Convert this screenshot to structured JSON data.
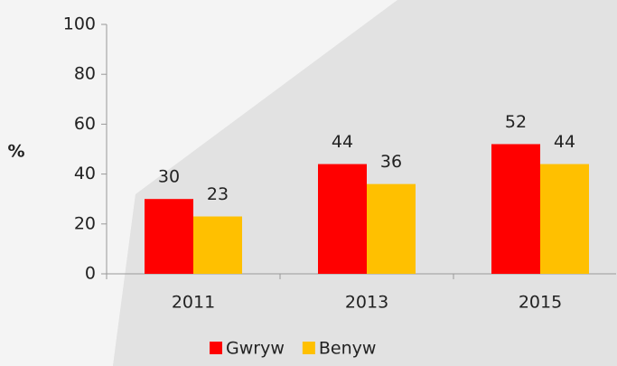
{
  "chart_data": {
    "type": "bar",
    "y_label": "%",
    "categories": [
      "2011",
      "2013",
      "2015"
    ],
    "series": [
      {
        "name": "Gwryw",
        "color": "#ff0000",
        "values": [
          30,
          44,
          52
        ]
      },
      {
        "name": "Benyw",
        "color": "#ffc000",
        "values": [
          23,
          36,
          44
        ]
      }
    ],
    "ylim": [
      0,
      100
    ],
    "yticks": [
      0,
      20,
      40,
      60,
      80,
      100
    ],
    "legend": "bottom"
  }
}
